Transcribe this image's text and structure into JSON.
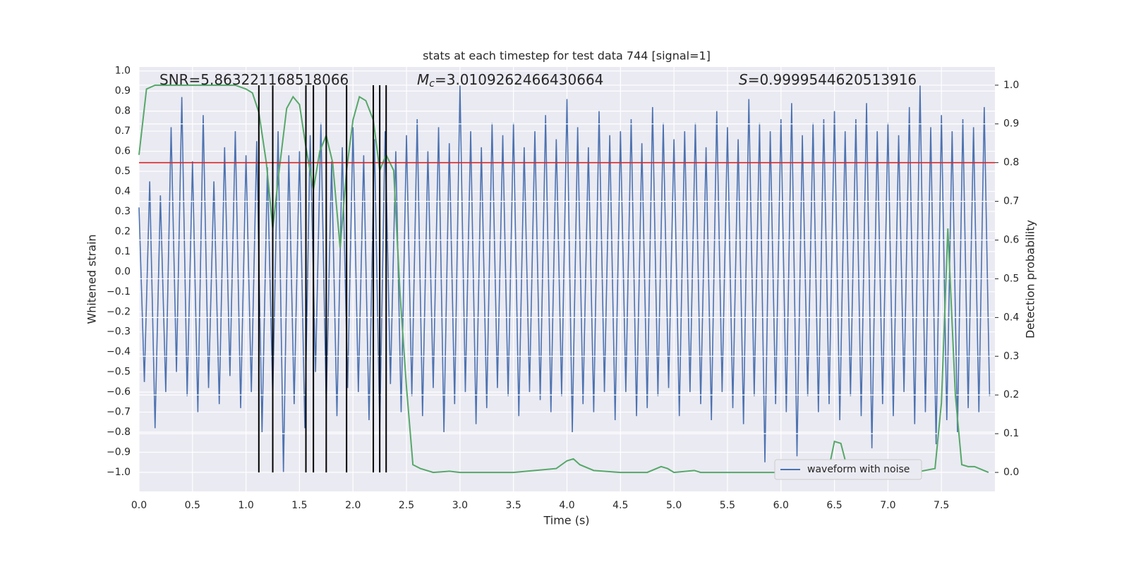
{
  "chart_data": {
    "type": "line",
    "title": "stats at each timestep for test data 744 [signal=1]",
    "xlabel": "Time (s)",
    "ylabel": "Whitened strain",
    "y2label": "Detection probability",
    "annotations": [
      {
        "text": "SNR=5.863221168518066"
      },
      {
        "symbol": "M",
        "subscript": "c",
        "text": "=3.0109262466430664"
      },
      {
        "symbol": "S",
        "text": "=0.9999544620513916"
      }
    ],
    "xlim": [
      0,
      8
    ],
    "ylim": [
      -1.095,
      1.02
    ],
    "y2lim": [
      -0.049,
      1.047
    ],
    "xticks": [
      {
        "value": 0,
        "label": "0.0"
      },
      0.5,
      {
        "value": 1,
        "label": "1.0"
      },
      1.5,
      {
        "value": 2,
        "label": "2.0"
      },
      2.5,
      {
        "value": 3,
        "label": "3.0"
      },
      3.5,
      {
        "value": 4,
        "label": "4.0"
      },
      4.5,
      {
        "value": 5,
        "label": "5.0"
      },
      5.5,
      {
        "value": 6,
        "label": "6.0"
      },
      6.5,
      {
        "value": 7,
        "label": "7.0"
      },
      7.5
    ],
    "yticks": [
      {
        "value": -1,
        "label": "−1.0"
      },
      {
        "value": -0.9,
        "label": "−0.9"
      },
      {
        "value": -0.8,
        "label": "−0.8"
      },
      {
        "value": -0.7,
        "label": "−0.7"
      },
      {
        "value": -0.6,
        "label": "−0.6"
      },
      {
        "value": -0.5,
        "label": "−0.5"
      },
      {
        "value": -0.4,
        "label": "−0.4"
      },
      {
        "value": -0.3,
        "label": "−0.3"
      },
      {
        "value": -0.2,
        "label": "−0.2"
      },
      {
        "value": -0.1,
        "label": "−0.1"
      },
      {
        "value": 0,
        "label": "0.0"
      },
      0.1,
      0.2,
      0.3,
      0.4,
      0.5,
      0.6,
      0.7,
      0.8,
      0.9,
      {
        "value": 1,
        "label": "1.0"
      }
    ],
    "y2ticks": [
      {
        "value": 0,
        "label": "0.0"
      },
      0.1,
      0.2,
      0.3,
      0.4,
      0.5,
      0.6,
      0.7,
      0.8,
      0.9,
      {
        "value": 1,
        "label": "1.0"
      }
    ],
    "grid": true,
    "legend": "lower right",
    "series": [
      {
        "name": "waveform with noise",
        "color": "#4c72b0",
        "x": [
          0,
          0.05,
          0.1,
          0.15,
          0.2,
          0.25,
          0.3,
          0.35,
          0.4,
          0.45,
          0.5,
          0.55,
          0.6,
          0.65,
          0.7,
          0.75,
          0.8,
          0.85,
          0.9,
          0.95,
          1,
          1.05,
          1.1,
          1.15,
          1.2,
          1.25,
          1.3,
          1.35,
          1.4,
          1.45,
          1.5,
          1.55,
          1.6,
          1.65,
          1.7,
          1.75,
          1.8,
          1.85,
          1.9,
          1.95,
          2,
          2.05,
          2.1,
          2.15,
          2.2,
          2.25,
          2.3,
          2.35,
          2.4,
          2.45,
          2.5,
          2.55,
          2.6,
          2.65,
          2.7,
          2.75,
          2.8,
          2.85,
          2.9,
          2.95,
          3,
          3.05,
          3.1,
          3.15,
          3.2,
          3.25,
          3.3,
          3.35,
          3.4,
          3.45,
          3.5,
          3.55,
          3.6,
          3.65,
          3.7,
          3.75,
          3.8,
          3.85,
          3.9,
          3.95,
          4,
          4.05,
          4.1,
          4.15,
          4.2,
          4.25,
          4.3,
          4.35,
          4.4,
          4.45,
          4.5,
          4.55,
          4.6,
          4.65,
          4.7,
          4.75,
          4.8,
          4.85,
          4.9,
          4.95,
          5,
          5.05,
          5.1,
          5.15,
          5.2,
          5.25,
          5.3,
          5.35,
          5.4,
          5.45,
          5.5,
          5.55,
          5.6,
          5.65,
          5.7,
          5.75,
          5.8,
          5.85,
          5.9,
          5.95,
          6,
          6.05,
          6.1,
          6.15,
          6.2,
          6.25,
          6.3,
          6.35,
          6.4,
          6.45,
          6.5,
          6.55,
          6.6,
          6.65,
          6.7,
          6.75,
          6.8,
          6.85,
          6.9,
          6.95,
          7,
          7.05,
          7.1,
          7.15,
          7.2,
          7.25,
          7.3,
          7.35,
          7.4,
          7.45,
          7.5,
          7.55,
          7.6,
          7.65,
          7.7,
          7.75,
          7.8,
          7.85,
          7.9,
          7.95
        ],
        "values": [
          0.32,
          -0.55,
          0.45,
          -0.78,
          0.38,
          -0.6,
          0.72,
          -0.5,
          0.87,
          -0.62,
          0.55,
          -0.7,
          0.78,
          -0.58,
          0.45,
          -0.66,
          0.62,
          -0.52,
          0.7,
          -0.68,
          0.58,
          -0.6,
          0.65,
          -0.8,
          0.52,
          -0.62,
          0.7,
          -1.0,
          0.58,
          -0.66,
          0.6,
          -0.78,
          0.68,
          -0.5,
          0.74,
          -0.66,
          0.55,
          -0.72,
          0.62,
          -0.58,
          0.72,
          -0.6,
          0.58,
          -0.74,
          0.66,
          -0.78,
          0.7,
          -0.56,
          0.6,
          -0.7,
          0.68,
          -0.62,
          0.76,
          -0.72,
          0.6,
          -0.58,
          0.72,
          -0.8,
          0.64,
          -0.66,
          0.93,
          -0.6,
          0.7,
          -0.76,
          0.62,
          -0.68,
          0.74,
          -0.58,
          0.68,
          -0.62,
          0.74,
          -0.72,
          0.62,
          -0.6,
          0.7,
          -0.64,
          0.78,
          -0.7,
          0.66,
          -0.62,
          0.86,
          -0.8,
          0.72,
          -0.66,
          0.62,
          -0.7,
          0.8,
          -0.6,
          0.68,
          -0.74,
          0.7,
          -0.6,
          0.76,
          -0.72,
          0.64,
          -0.68,
          0.82,
          -0.62,
          0.74,
          -0.58,
          0.66,
          -0.72,
          0.7,
          -0.6,
          0.74,
          -0.66,
          0.62,
          -0.74,
          0.8,
          -0.6,
          0.72,
          -0.68,
          0.66,
          -0.76,
          0.86,
          -0.62,
          0.74,
          -0.95,
          0.7,
          -0.66,
          0.76,
          -0.7,
          0.84,
          -0.92,
          0.68,
          -0.62,
          0.74,
          -0.7,
          0.76,
          -0.66,
          0.8,
          -0.74,
          0.7,
          -0.62,
          0.76,
          -0.72,
          0.84,
          -0.88,
          0.7,
          -0.66,
          0.74,
          -0.72,
          0.68,
          -0.6,
          0.82,
          -0.76,
          0.93,
          -0.7,
          0.72,
          -0.86,
          0.78,
          -0.74,
          0.7,
          -0.8,
          0.76,
          -0.68,
          0.72,
          -0.7,
          0.82,
          -0.62
        ]
      },
      {
        "color": "#55a868",
        "axis": "y2",
        "x": [
          0,
          0.07,
          0.15,
          0.5,
          0.9,
          1,
          1.06,
          1.12,
          1.19,
          1.25,
          1.31,
          1.38,
          1.44,
          1.5,
          1.56,
          1.63,
          1.69,
          1.75,
          1.81,
          1.88,
          1.94,
          2,
          2.06,
          2.12,
          2.19,
          2.25,
          2.31,
          2.38,
          2.44,
          2.5,
          2.56,
          2.63,
          2.75,
          2.9,
          3,
          3.5,
          3.9,
          4,
          4.06,
          4.12,
          4.25,
          4.5,
          4.75,
          4.88,
          4.94,
          5,
          5.19,
          5.25,
          5.75,
          5.94,
          6,
          6.19,
          6.44,
          6.5,
          6.56,
          6.63,
          7.25,
          7.44,
          7.5,
          7.56,
          7.63,
          7.69,
          7.75,
          7.81,
          7.94
        ],
        "values": [
          0.82,
          0.99,
          1.0,
          1.0,
          1.0,
          0.99,
          0.98,
          0.93,
          0.8,
          0.63,
          0.78,
          0.94,
          0.97,
          0.95,
          0.84,
          0.73,
          0.83,
          0.87,
          0.8,
          0.58,
          0.78,
          0.91,
          0.97,
          0.96,
          0.91,
          0.78,
          0.82,
          0.78,
          0.46,
          0.22,
          0.02,
          0.01,
          0.0,
          0.003,
          0.0,
          0.0,
          0.01,
          0.03,
          0.035,
          0.02,
          0.005,
          0.0,
          0.0,
          0.015,
          0.01,
          0.0,
          0.005,
          0.0,
          0.0,
          0.0,
          0.015,
          0.0,
          0.0,
          0.08,
          0.075,
          0.0,
          0.0,
          0.01,
          0.18,
          0.63,
          0.2,
          0.02,
          0.015,
          0.015,
          0.0
        ]
      }
    ],
    "threshold": {
      "value": 0.8,
      "axis": "y2",
      "color": "#d62728"
    },
    "vlines": {
      "x": [
        1.12,
        1.25,
        1.56,
        1.63,
        1.75,
        1.94,
        2.19,
        2.25,
        2.31
      ],
      "ymin": 0,
      "ymax": 1,
      "axis": "y2",
      "color": "#000000"
    }
  }
}
